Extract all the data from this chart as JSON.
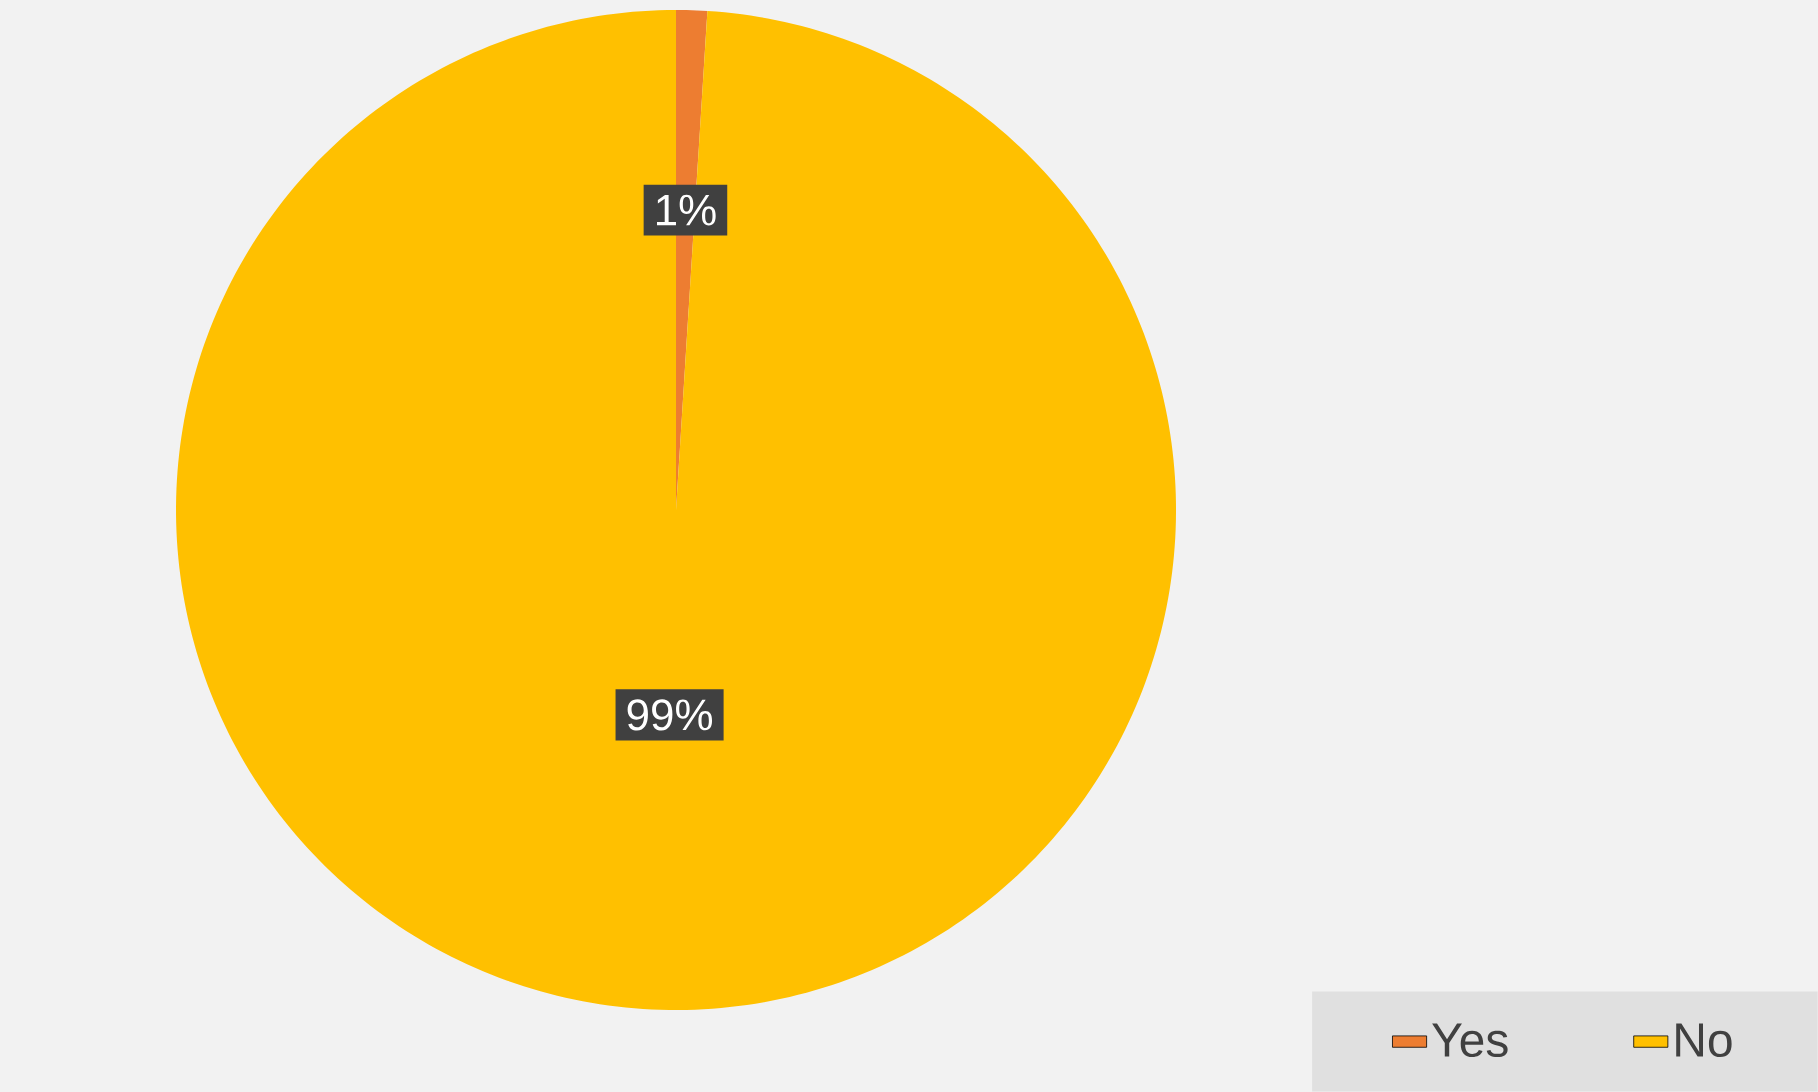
{
  "chart_data": {
    "type": "pie",
    "categories": [
      "Yes",
      "No"
    ],
    "values": [
      1,
      99
    ],
    "value_labels": [
      "1%",
      "99%"
    ],
    "colors": [
      "#ed7d31",
      "#ffc000"
    ],
    "legend": "bottom right"
  }
}
